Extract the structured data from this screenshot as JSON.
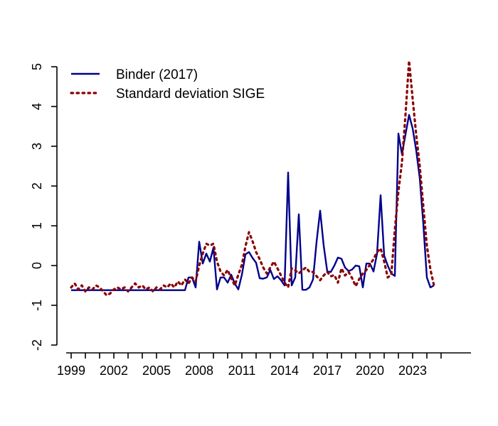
{
  "chart": {
    "background": "#ffffff",
    "legend": {
      "position": "top-left",
      "entries": [
        {
          "label": "Binder (2017)",
          "color": "#00008B",
          "line_style": "solid"
        },
        {
          "label": "Standard deviation SIGE",
          "color": "#8B0000",
          "line_style": "dotted"
        }
      ]
    },
    "x_axis": {
      "tick_start_year": 1999,
      "tick_end_year": 2025,
      "labeled_ticks": [
        "1999",
        "2002",
        "2005",
        "2008",
        "2011",
        "2014",
        "2017",
        "2020",
        "2023"
      ],
      "labeled_tick_years": [
        1999,
        2002,
        2005,
        2008,
        2011,
        2014,
        2017,
        2020,
        2023
      ]
    },
    "y_axis": {
      "ticks": [
        "-2",
        "-1",
        "0",
        "1",
        "2",
        "3",
        "4",
        "5"
      ],
      "tick_values": [
        -2,
        -1,
        0,
        1,
        2,
        3,
        4,
        5
      ]
    }
  },
  "chart_data": {
    "type": "line",
    "title": "",
    "xlabel": "",
    "ylabel": "",
    "x_start": 1999.0,
    "x_step": 0.25,
    "xlim": [
      1998.65,
      2026.1
    ],
    "ylim": [
      -2.2,
      5.3
    ],
    "grid": false,
    "legend_position": "top-left",
    "series": [
      {
        "name": "Binder (2017)",
        "color": "#00008B",
        "style": "solid",
        "values": [
          -0.62,
          -0.62,
          -0.62,
          -0.62,
          -0.62,
          -0.62,
          -0.62,
          -0.62,
          -0.62,
          -0.62,
          -0.62,
          -0.62,
          -0.62,
          -0.62,
          -0.62,
          -0.62,
          -0.62,
          -0.62,
          -0.62,
          -0.62,
          -0.62,
          -0.62,
          -0.62,
          -0.62,
          -0.62,
          -0.62,
          -0.62,
          -0.62,
          -0.62,
          -0.62,
          -0.62,
          -0.62,
          -0.62,
          -0.3,
          -0.3,
          -0.55,
          0.6,
          0.05,
          0.3,
          0.1,
          0.45,
          -0.6,
          -0.3,
          -0.3,
          -0.43,
          -0.23,
          -0.45,
          -0.6,
          -0.23,
          0.28,
          0.34,
          0.19,
          0.07,
          -0.32,
          -0.33,
          -0.3,
          -0.11,
          -0.34,
          -0.27,
          -0.37,
          -0.5,
          2.34,
          -0.5,
          -0.3,
          1.29,
          -0.61,
          -0.61,
          -0.55,
          -0.35,
          0.6,
          1.38,
          0.5,
          -0.15,
          -0.16,
          0.0,
          0.2,
          0.17,
          -0.05,
          -0.14,
          -0.1,
          0.0,
          -0.02,
          -0.55,
          0.05,
          0.05,
          -0.15,
          0.3,
          1.77,
          0.25,
          0.0,
          -0.2,
          -0.26,
          3.32,
          2.8,
          3.3,
          3.79,
          3.45,
          2.9,
          2.2,
          1.05,
          -0.3,
          -0.55,
          -0.5
        ]
      },
      {
        "name": "Standard deviation SIGE",
        "color": "#8B0000",
        "style": "dotted",
        "values": [
          -0.55,
          -0.45,
          -0.6,
          -0.5,
          -0.65,
          -0.55,
          -0.6,
          -0.5,
          -0.55,
          -0.65,
          -0.75,
          -0.7,
          -0.6,
          -0.55,
          -0.6,
          -0.55,
          -0.65,
          -0.55,
          -0.45,
          -0.55,
          -0.5,
          -0.6,
          -0.55,
          -0.65,
          -0.55,
          -0.6,
          -0.5,
          -0.55,
          -0.45,
          -0.55,
          -0.4,
          -0.5,
          -0.35,
          -0.45,
          -0.3,
          -0.4,
          0.0,
          0.3,
          0.55,
          0.5,
          0.55,
          0.1,
          -0.15,
          -0.25,
          -0.11,
          -0.32,
          -0.5,
          -0.23,
          0.02,
          0.48,
          0.84,
          0.61,
          0.34,
          0.16,
          -0.05,
          -0.2,
          -0.05,
          0.1,
          -0.07,
          -0.25,
          -0.43,
          -0.55,
          -0.07,
          -0.12,
          -0.2,
          -0.12,
          -0.05,
          -0.16,
          -0.16,
          -0.27,
          -0.37,
          -0.25,
          -0.16,
          -0.27,
          -0.24,
          -0.43,
          -0.07,
          -0.25,
          -0.16,
          -0.32,
          -0.52,
          -0.34,
          -0.2,
          -0.11,
          0.02,
          0.16,
          0.34,
          0.43,
          0.1,
          -0.3,
          -0.23,
          0.9,
          1.86,
          2.6,
          3.8,
          5.15,
          4.2,
          3.3,
          2.5,
          1.5,
          0.5,
          -0.1,
          -0.5
        ]
      }
    ]
  }
}
